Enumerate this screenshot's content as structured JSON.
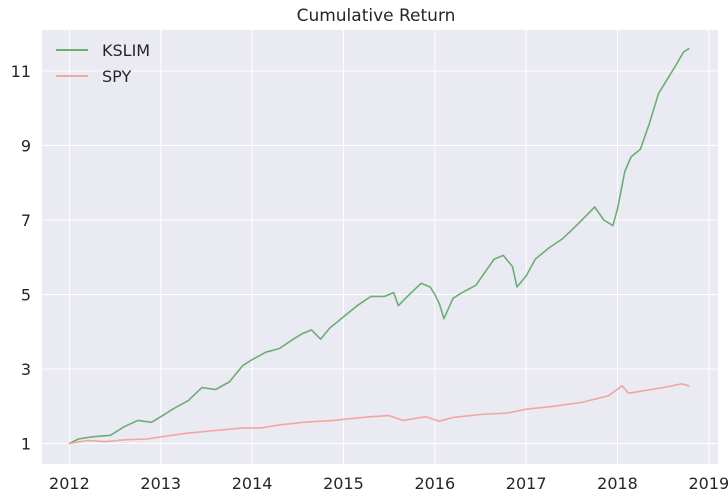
{
  "chart_data": {
    "type": "line",
    "title": "Cumulative Return",
    "xlabel": "",
    "ylabel": "",
    "x_ticks": [
      "2012",
      "2013",
      "2014",
      "2015",
      "2016",
      "2017",
      "2018",
      "2019"
    ],
    "y_ticks": [
      1,
      3,
      5,
      7,
      9,
      11
    ],
    "xlim": [
      2011.7,
      2019.1
    ],
    "ylim": [
      0.45,
      12.1
    ],
    "grid": true,
    "legend": "top-left",
    "series": [
      {
        "name": "KSLIM",
        "color": "#6aaf71",
        "points": [
          [
            2012.0,
            1.0
          ],
          [
            2012.1,
            1.12
          ],
          [
            2012.25,
            1.18
          ],
          [
            2012.45,
            1.22
          ],
          [
            2012.6,
            1.45
          ],
          [
            2012.75,
            1.62
          ],
          [
            2012.9,
            1.57
          ],
          [
            2013.0,
            1.72
          ],
          [
            2013.15,
            1.95
          ],
          [
            2013.3,
            2.15
          ],
          [
            2013.45,
            2.5
          ],
          [
            2013.6,
            2.45
          ],
          [
            2013.75,
            2.65
          ],
          [
            2013.9,
            3.1
          ],
          [
            2014.0,
            3.25
          ],
          [
            2014.15,
            3.45
          ],
          [
            2014.3,
            3.55
          ],
          [
            2014.45,
            3.8
          ],
          [
            2014.55,
            3.95
          ],
          [
            2014.65,
            4.05
          ],
          [
            2014.75,
            3.8
          ],
          [
            2014.85,
            4.1
          ],
          [
            2014.95,
            4.3
          ],
          [
            2015.05,
            4.5
          ],
          [
            2015.15,
            4.7
          ],
          [
            2015.3,
            4.95
          ],
          [
            2015.45,
            4.95
          ],
          [
            2015.55,
            5.05
          ],
          [
            2015.6,
            4.7
          ],
          [
            2015.7,
            4.95
          ],
          [
            2015.85,
            5.3
          ],
          [
            2015.95,
            5.2
          ],
          [
            2016.0,
            5.0
          ],
          [
            2016.05,
            4.75
          ],
          [
            2016.1,
            4.35
          ],
          [
            2016.2,
            4.9
          ],
          [
            2016.3,
            5.05
          ],
          [
            2016.45,
            5.25
          ],
          [
            2016.55,
            5.6
          ],
          [
            2016.65,
            5.95
          ],
          [
            2016.75,
            6.05
          ],
          [
            2016.85,
            5.75
          ],
          [
            2016.9,
            5.2
          ],
          [
            2017.0,
            5.5
          ],
          [
            2017.1,
            5.95
          ],
          [
            2017.25,
            6.25
          ],
          [
            2017.4,
            6.5
          ],
          [
            2017.55,
            6.85
          ],
          [
            2017.65,
            7.1
          ],
          [
            2017.75,
            7.35
          ],
          [
            2017.85,
            7.0
          ],
          [
            2017.95,
            6.85
          ],
          [
            2018.0,
            7.3
          ],
          [
            2018.08,
            8.3
          ],
          [
            2018.15,
            8.7
          ],
          [
            2018.25,
            8.9
          ],
          [
            2018.35,
            9.6
          ],
          [
            2018.45,
            10.4
          ],
          [
            2018.55,
            10.8
          ],
          [
            2018.65,
            11.2
          ],
          [
            2018.72,
            11.5
          ],
          [
            2018.78,
            11.6
          ]
        ]
      },
      {
        "name": "SPY",
        "color": "#f2a6a0",
        "points": [
          [
            2012.0,
            1.0
          ],
          [
            2012.2,
            1.08
          ],
          [
            2012.4,
            1.05
          ],
          [
            2012.6,
            1.1
          ],
          [
            2012.85,
            1.12
          ],
          [
            2013.0,
            1.18
          ],
          [
            2013.3,
            1.28
          ],
          [
            2013.6,
            1.35
          ],
          [
            2013.9,
            1.42
          ],
          [
            2014.1,
            1.42
          ],
          [
            2014.3,
            1.5
          ],
          [
            2014.6,
            1.58
          ],
          [
            2014.9,
            1.62
          ],
          [
            2015.0,
            1.65
          ],
          [
            2015.3,
            1.72
          ],
          [
            2015.5,
            1.75
          ],
          [
            2015.65,
            1.62
          ],
          [
            2015.9,
            1.72
          ],
          [
            2016.05,
            1.6
          ],
          [
            2016.2,
            1.7
          ],
          [
            2016.5,
            1.78
          ],
          [
            2016.8,
            1.82
          ],
          [
            2017.0,
            1.92
          ],
          [
            2017.3,
            2.0
          ],
          [
            2017.6,
            2.1
          ],
          [
            2017.9,
            2.28
          ],
          [
            2018.05,
            2.55
          ],
          [
            2018.12,
            2.35
          ],
          [
            2018.3,
            2.42
          ],
          [
            2018.5,
            2.5
          ],
          [
            2018.7,
            2.6
          ],
          [
            2018.78,
            2.55
          ]
        ]
      }
    ]
  }
}
